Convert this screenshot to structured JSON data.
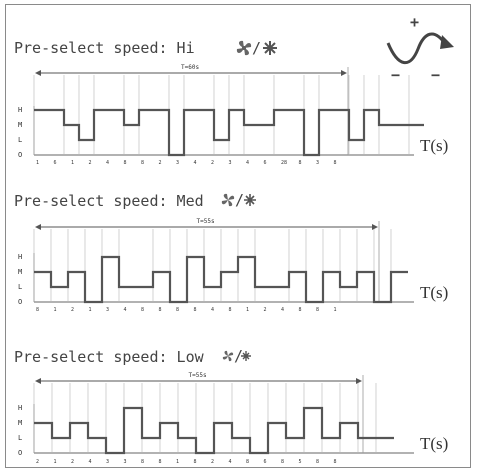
{
  "panels": [
    {
      "id": "hi",
      "title": "Pre-select speed: Hi",
      "axis_label": "T(s)",
      "period_label": "T=60s",
      "levels": [
        "H",
        "M",
        "L",
        "O"
      ],
      "signal": [
        [
          0,
          3
        ],
        [
          2,
          2
        ],
        [
          3,
          1
        ],
        [
          4,
          3
        ],
        [
          6,
          2
        ],
        [
          7,
          3
        ],
        [
          9,
          0
        ],
        [
          10,
          3
        ],
        [
          12,
          1
        ],
        [
          13,
          3
        ],
        [
          14,
          2
        ],
        [
          16,
          3
        ],
        [
          18,
          0
        ],
        [
          19,
          3
        ],
        [
          21,
          1
        ],
        [
          22,
          3
        ],
        [
          23,
          2
        ],
        [
          25,
          2
        ]
      ],
      "signal_end": 26,
      "ticks": [
        "1",
        "6",
        "1",
        "2",
        "4",
        "8",
        "8",
        "2",
        "3",
        "4",
        "2",
        "3",
        "4",
        "6",
        "28",
        "8",
        "3",
        "8"
      ]
    },
    {
      "id": "med",
      "title": "Pre-select speed: Med",
      "axis_label": "T(s)",
      "period_label": "T=55s",
      "levels": [
        "H",
        "M",
        "L",
        "O"
      ],
      "signal": [
        [
          0,
          2
        ],
        [
          1,
          1
        ],
        [
          2,
          2
        ],
        [
          3,
          0
        ],
        [
          4,
          3
        ],
        [
          5,
          1
        ],
        [
          7,
          2
        ],
        [
          8,
          0
        ],
        [
          9,
          3
        ],
        [
          10,
          1
        ],
        [
          11,
          2
        ],
        [
          12,
          3
        ],
        [
          13,
          1
        ],
        [
          15,
          2
        ],
        [
          16,
          0
        ],
        [
          17,
          2
        ],
        [
          18,
          1
        ],
        [
          19,
          2
        ],
        [
          20,
          0
        ],
        [
          21,
          2
        ]
      ],
      "signal_end": 22,
      "ticks": [
        "8",
        "1",
        "2",
        "1",
        "3",
        "4",
        "8",
        "8",
        "8",
        "8",
        "4",
        "8",
        "1",
        "2",
        "4",
        "8",
        "8",
        "1"
      ]
    },
    {
      "id": "low",
      "title": "Pre-select speed: Low",
      "axis_label": "T(s)",
      "period_label": "T=55s",
      "levels": [
        "H",
        "M",
        "L",
        "O"
      ],
      "signal": [
        [
          0,
          2
        ],
        [
          1,
          1
        ],
        [
          2,
          2
        ],
        [
          3,
          1
        ],
        [
          4,
          0
        ],
        [
          5,
          3
        ],
        [
          6,
          1
        ],
        [
          7,
          2
        ],
        [
          8,
          1
        ],
        [
          9,
          0
        ],
        [
          10,
          2
        ],
        [
          11,
          1
        ],
        [
          12,
          0
        ],
        [
          13,
          2
        ],
        [
          14,
          1
        ],
        [
          15,
          3
        ],
        [
          16,
          1
        ],
        [
          17,
          2
        ],
        [
          18,
          1
        ],
        [
          19,
          1
        ]
      ],
      "signal_end": 20,
      "ticks": [
        "2",
        "1",
        "2",
        "4",
        "3",
        "3",
        "8",
        "8",
        "1",
        "8",
        "2",
        "4",
        "8",
        "6",
        "8",
        "5",
        "8",
        "8"
      ]
    }
  ],
  "icon": {
    "name": "sine-wave-polarity-icon",
    "plus": "+",
    "minus": "−"
  },
  "colors": {
    "signal": "#555555",
    "frame": "#8a8a8a",
    "guide": "#b5b5b5"
  }
}
